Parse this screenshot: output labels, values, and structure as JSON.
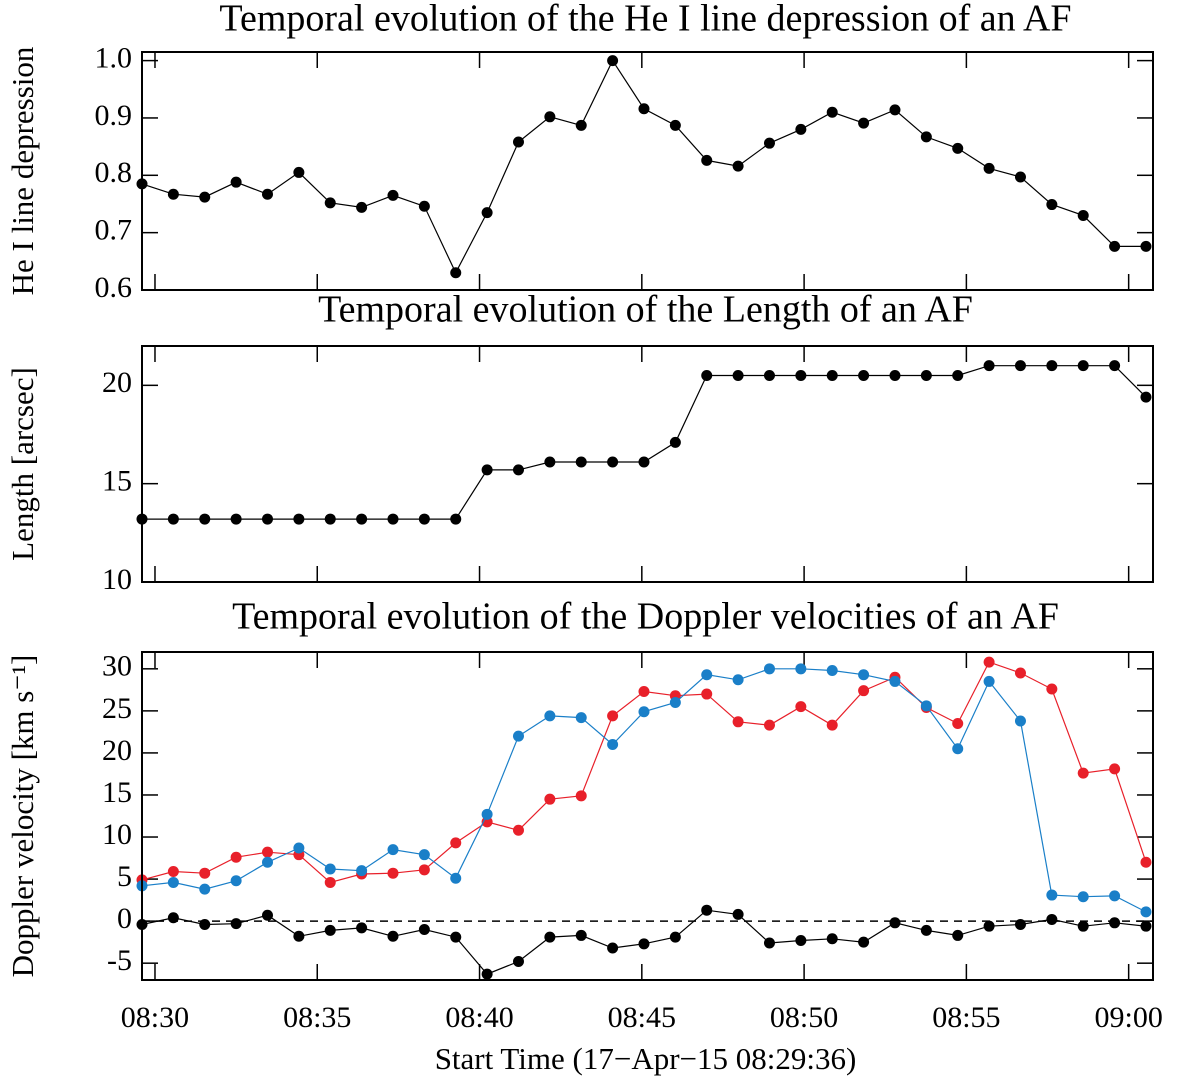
{
  "chart_data": [
    {
      "type": "line",
      "title": "Temporal evolution of the He I line depression of an AF",
      "ylabel": "He I line depression",
      "x": [
        "08:29:36",
        "08:30:34",
        "08:31:32",
        "08:32:30",
        "08:33:28",
        "08:34:26",
        "08:35:24",
        "08:36:22",
        "08:37:20",
        "08:38:18",
        "08:39:16",
        "08:40:14",
        "08:41:12",
        "08:42:10",
        "08:43:08",
        "08:44:06",
        "08:45:04",
        "08:46:02",
        "08:47:00",
        "08:47:58",
        "08:48:56",
        "08:49:54",
        "08:50:52",
        "08:51:50",
        "08:52:48",
        "08:53:46",
        "08:54:44",
        "08:55:42",
        "08:56:40",
        "08:57:38",
        "08:58:36",
        "08:59:34",
        "09:00:32"
      ],
      "values": [
        0.785,
        0.767,
        0.762,
        0.788,
        0.767,
        0.805,
        0.752,
        0.744,
        0.765,
        0.746,
        0.63,
        0.735,
        0.858,
        0.902,
        0.887,
        1.0,
        0.916,
        0.887,
        0.826,
        0.816,
        0.856,
        0.88,
        0.91,
        0.891,
        0.914,
        0.867,
        0.847,
        0.812,
        0.797,
        0.749,
        0.73,
        0.676,
        0.676
      ],
      "color": "#000000",
      "xlim": [
        "08:29:36",
        "09:00:45"
      ],
      "ylim": [
        0.6,
        1.015
      ],
      "yticks": [
        0.6,
        0.7,
        0.8,
        0.9,
        {
          "value": 1,
          "label": "1.0"
        }
      ]
    },
    {
      "type": "line",
      "title": "Temporal evolution of the Length of an AF",
      "ylabel": "Length  [arcsec]",
      "x": [
        "08:29:36",
        "08:30:34",
        "08:31:32",
        "08:32:30",
        "08:33:28",
        "08:34:26",
        "08:35:24",
        "08:36:22",
        "08:37:20",
        "08:38:18",
        "08:39:16",
        "08:40:14",
        "08:41:12",
        "08:42:10",
        "08:43:08",
        "08:44:06",
        "08:45:04",
        "08:46:02",
        "08:47:00",
        "08:47:58",
        "08:48:56",
        "08:49:54",
        "08:50:52",
        "08:51:50",
        "08:52:48",
        "08:53:46",
        "08:54:44",
        "08:55:42",
        "08:56:40",
        "08:57:38",
        "08:58:36",
        "08:59:34",
        "09:00:32"
      ],
      "values": [
        13.2,
        13.2,
        13.2,
        13.2,
        13.2,
        13.2,
        13.2,
        13.2,
        13.2,
        13.2,
        13.2,
        15.7,
        15.7,
        16.1,
        16.1,
        16.1,
        16.1,
        17.1,
        20.5,
        20.5,
        20.5,
        20.5,
        20.5,
        20.5,
        20.5,
        20.5,
        20.5,
        21.0,
        21.0,
        21.0,
        21.0,
        21.0,
        19.4
      ],
      "color": "#000000",
      "xlim": [
        "08:29:36",
        "09:00:45"
      ],
      "ylim": [
        10,
        22
      ],
      "yticks": [
        10,
        15,
        20
      ]
    },
    {
      "type": "line",
      "title": "Temporal evolution of the Doppler velocities of an AF",
      "ylabel": "Doppler velocity   [km s⁻¹]",
      "xlabel": "Start Time (17−Apr−15 08:29:36)",
      "x": [
        "08:29:36",
        "08:30:34",
        "08:31:32",
        "08:32:30",
        "08:33:28",
        "08:34:26",
        "08:35:24",
        "08:36:22",
        "08:37:20",
        "08:38:18",
        "08:39:16",
        "08:40:14",
        "08:41:12",
        "08:42:10",
        "08:43:08",
        "08:44:06",
        "08:45:04",
        "08:46:02",
        "08:47:00",
        "08:47:58",
        "08:48:56",
        "08:49:54",
        "08:50:52",
        "08:51:50",
        "08:52:48",
        "08:53:46",
        "08:54:44",
        "08:55:42",
        "08:56:40",
        "08:57:38",
        "08:58:36",
        "08:59:34",
        "09:00:32"
      ],
      "series": [
        {
          "color": "#e8202a",
          "values": [
            4.9,
            5.9,
            5.7,
            7.6,
            8.2,
            7.9,
            4.6,
            5.6,
            5.7,
            6.1,
            9.3,
            11.8,
            10.8,
            14.5,
            14.9,
            24.4,
            27.3,
            26.8,
            27.0,
            23.7,
            23.3,
            25.5,
            23.3,
            27.4,
            29.0,
            25.4,
            23.5,
            30.8,
            29.5,
            27.6,
            17.6,
            18.1,
            7.0
          ]
        },
        {
          "color": "#1a7fc8",
          "values": [
            4.2,
            4.6,
            3.8,
            4.8,
            7.0,
            8.7,
            6.2,
            6.0,
            8.5,
            7.9,
            5.1,
            12.7,
            22.0,
            24.4,
            24.2,
            21.0,
            24.9,
            26.0,
            29.3,
            28.7,
            30.0,
            30.0,
            29.8,
            29.3,
            28.5,
            25.6,
            20.5,
            28.5,
            23.8,
            3.1,
            2.9,
            3.0,
            1.1
          ]
        },
        {
          "color": "#000000",
          "values": [
            -0.4,
            0.4,
            -0.4,
            -0.3,
            0.7,
            -1.8,
            -1.1,
            -0.8,
            -1.8,
            -1.0,
            -1.9,
            -6.3,
            -4.8,
            -1.9,
            -1.7,
            -3.2,
            -2.7,
            -1.9,
            1.3,
            0.8,
            -2.6,
            -2.3,
            -2.1,
            -2.5,
            -0.2,
            -1.1,
            -1.7,
            -0.6,
            -0.4,
            0.2,
            -0.6,
            -0.2,
            -0.6
          ]
        }
      ],
      "reference_line": 0,
      "xlim": [
        "08:29:36",
        "09:00:45"
      ],
      "ylim": [
        -7,
        32
      ],
      "xticks": [
        "08:30",
        "08:35",
        "08:40",
        "08:45",
        "08:50",
        "08:55",
        "09:00"
      ],
      "yticks": [
        -5,
        0,
        5,
        10,
        15,
        20,
        25,
        30
      ]
    }
  ]
}
